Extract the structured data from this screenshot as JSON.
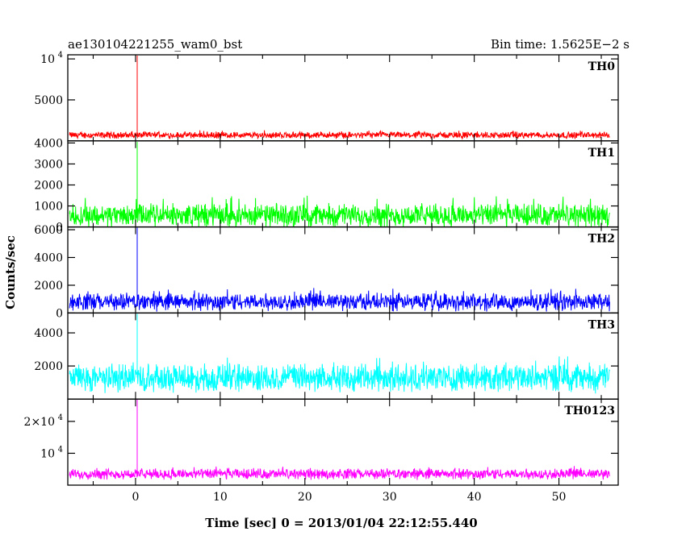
{
  "header": {
    "left": "ae130104221255_wam0_bst",
    "right": "Bin time: 1.5625E−2 s"
  },
  "axes": {
    "xlabel": "Time [sec] 0 = 2013/01/04 22:12:55.440",
    "ylabel": "Counts/sec"
  },
  "chart_data": [
    {
      "type": "line",
      "label": "TH0",
      "color": "#ff0000",
      "xlim": [
        -8,
        57
      ],
      "ylim": [
        0,
        10500
      ],
      "yticks": [
        {
          "v": 5000,
          "label": "5000"
        },
        {
          "v": 10000,
          "label": "10",
          "sup": "4"
        }
      ],
      "x_start": -7.8,
      "x_end": 56,
      "baseline": 700,
      "noise_range": [
        200,
        1300
      ],
      "spike": {
        "x": 0.2,
        "y": 10400
      }
    },
    {
      "type": "line",
      "label": "TH1",
      "color": "#00ff00",
      "xlim": [
        -8,
        57
      ],
      "ylim": [
        0,
        4100
      ],
      "yticks": [
        {
          "v": 0,
          "label": "0"
        },
        {
          "v": 1000,
          "label": "1000"
        },
        {
          "v": 2000,
          "label": "2000"
        },
        {
          "v": 3000,
          "label": "3000"
        },
        {
          "v": 4000,
          "label": "4000"
        }
      ],
      "x_start": -7.8,
      "x_end": 56,
      "baseline": 550,
      "noise_range": [
        0,
        1500
      ],
      "spike": {
        "x": 0.2,
        "y": 4050
      }
    },
    {
      "type": "line",
      "label": "TH2",
      "color": "#0000ff",
      "xlim": [
        -8,
        57
      ],
      "ylim": [
        0,
        6200
      ],
      "yticks": [
        {
          "v": 0,
          "label": "0"
        },
        {
          "v": 2000,
          "label": "2000"
        },
        {
          "v": 4000,
          "label": "4000"
        },
        {
          "v": 6000,
          "label": "6000"
        }
      ],
      "x_start": -7.8,
      "x_end": 56,
      "baseline": 800,
      "noise_range": [
        100,
        1800
      ],
      "spike": {
        "x": 0.2,
        "y": 6150
      }
    },
    {
      "type": "line",
      "label": "TH3",
      "color": "#00ffff",
      "xlim": [
        -8,
        57
      ],
      "ylim": [
        0,
        5200
      ],
      "yticks": [
        {
          "v": 2000,
          "label": "2000"
        },
        {
          "v": 4000,
          "label": "4000"
        }
      ],
      "x_start": -7.8,
      "x_end": 56,
      "baseline": 1300,
      "noise_range": [
        300,
        2600
      ],
      "spike": {
        "x": 0.2,
        "y": 5150
      }
    },
    {
      "type": "line",
      "label": "TH0123",
      "color": "#ff00ff",
      "xlim": [
        -8,
        57
      ],
      "ylim": [
        0,
        27000
      ],
      "yticks": [
        {
          "v": 10000,
          "label": "10",
          "sup": "4"
        },
        {
          "v": 20000,
          "label": "2×10",
          "sup": "4"
        }
      ],
      "x_start": -7.8,
      "x_end": 56,
      "baseline": 3500,
      "noise_range": [
        1500,
        6000
      ],
      "spike": {
        "x": 0.2,
        "y": 26800
      }
    }
  ],
  "xticks": [
    {
      "v": 0,
      "label": "0"
    },
    {
      "v": 10,
      "label": "10"
    },
    {
      "v": 20,
      "label": "20"
    },
    {
      "v": 30,
      "label": "30"
    },
    {
      "v": 40,
      "label": "40"
    },
    {
      "v": 50,
      "label": "50"
    }
  ]
}
